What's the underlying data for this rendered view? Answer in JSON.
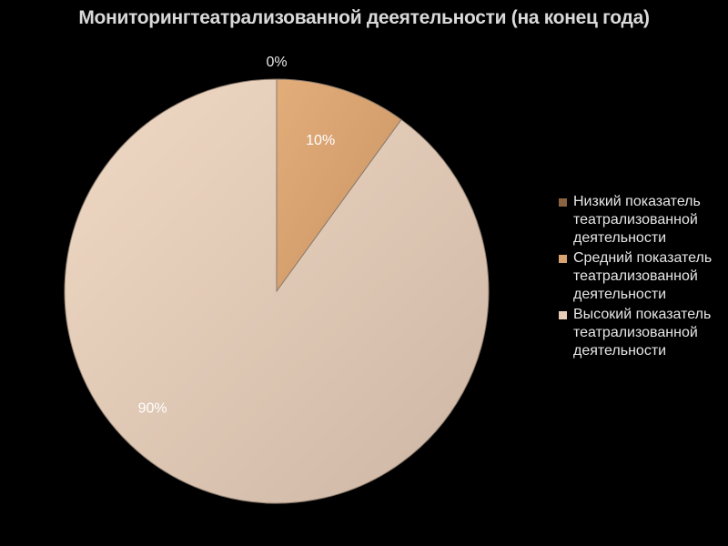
{
  "chart_data": {
    "type": "pie",
    "title": "Мониторингтеатрализованной деeятельности (на конец года)",
    "categories": [
      "Низкий показатель театрализованной деятельности",
      "Средний показатель театрализованной деятельности",
      "Высокий показатель театрализованной деятельности"
    ],
    "values": [
      0,
      10,
      90
    ],
    "data_labels": [
      "0%",
      "10%",
      "90%"
    ],
    "colors": [
      "#8b6340",
      "#d9a271",
      "#e9cdb6"
    ],
    "legend_position": "right"
  },
  "legend": {
    "items": [
      {
        "label": "Низкий показатель театрализованной деятельности"
      },
      {
        "label": "Средний показатель театрализованной деятельности"
      },
      {
        "label": "Высокий показатель театрализованной деятельности"
      }
    ]
  },
  "colors": {
    "background": "#000000",
    "title_text": "#d9d9d9",
    "legend_text": "#e6e6e6"
  }
}
